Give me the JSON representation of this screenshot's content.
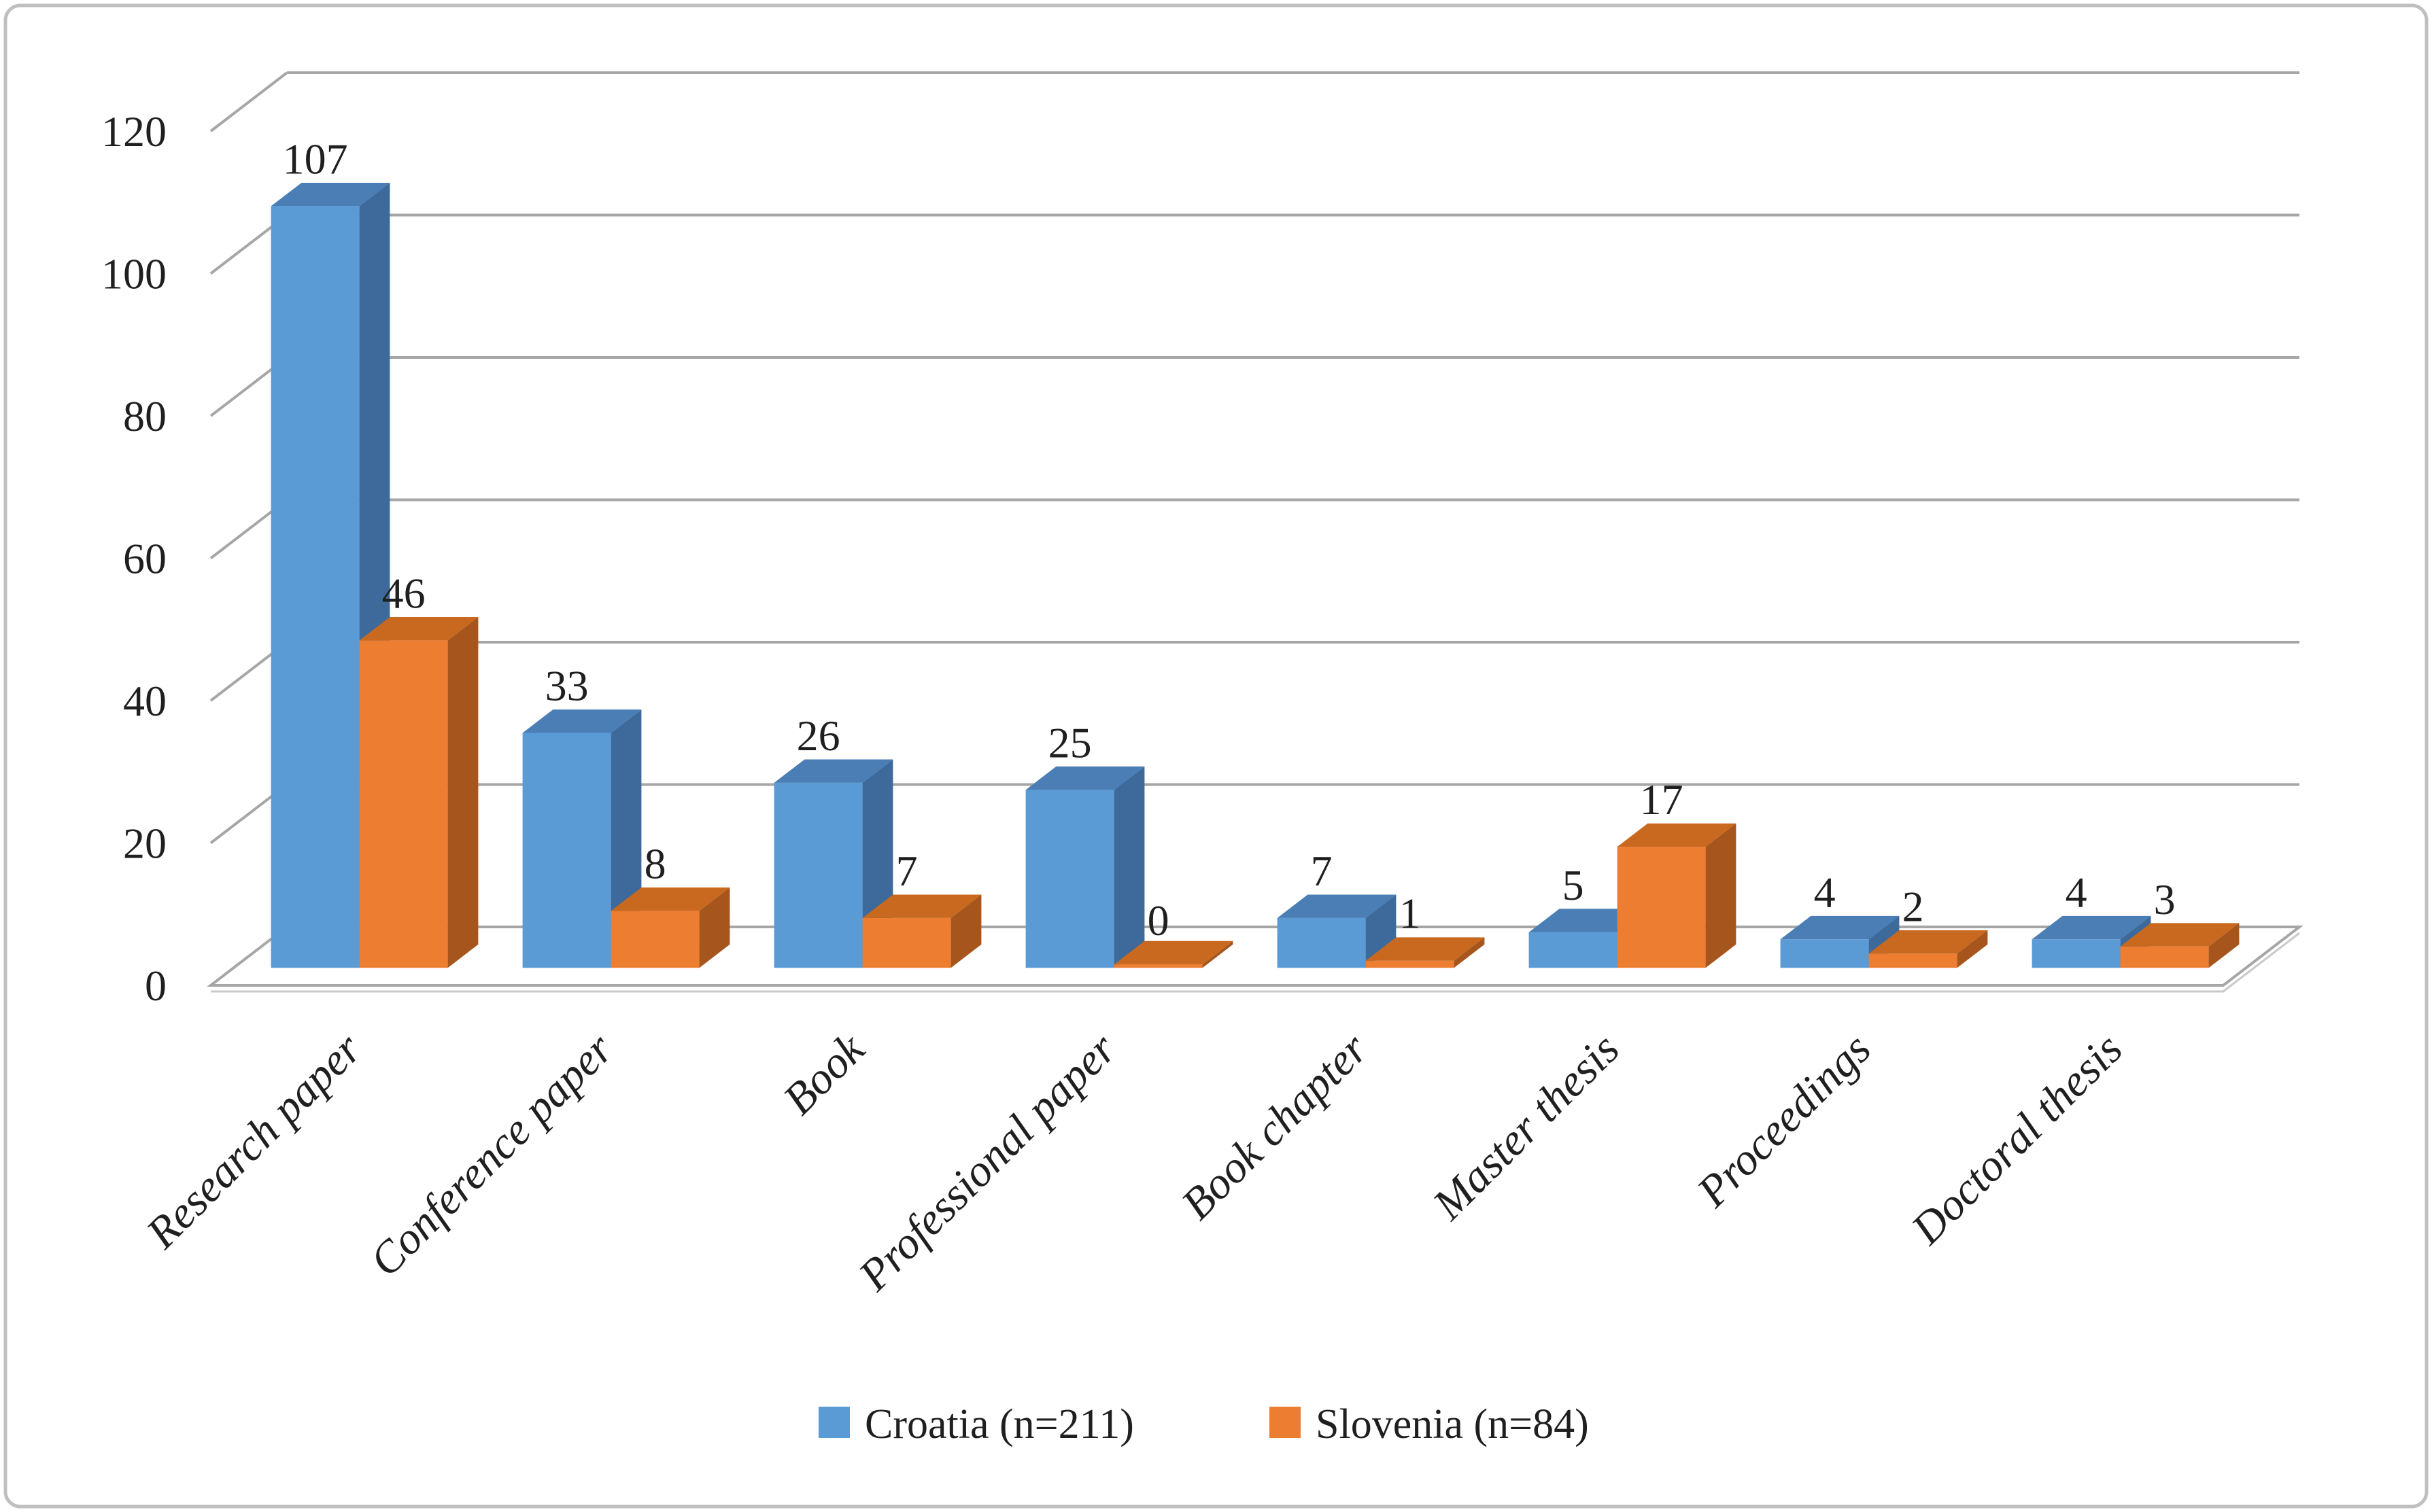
{
  "figure": {
    "background": "#FFFFFF",
    "border_color": "#BFBFBF"
  },
  "colors": {
    "gridline": "#A6A6A6",
    "floor_shadow": "#C9C9C9",
    "text": "#1F1F1F"
  },
  "chart_data": {
    "type": "bar",
    "style": "3d-clustered-column",
    "title": "",
    "xlabel": "",
    "ylabel": "",
    "categories": [
      "Research paper",
      "Conference paper",
      "Book",
      "Professional paper",
      "Book chapter",
      "Master thesis",
      "Proceedings",
      "Doctoral thesis"
    ],
    "series": [
      {
        "name": "Croatia (n=211)",
        "color": "#5B9BD5",
        "face_colors": {
          "front": "#5B9BD5",
          "top": "#4A7EB5",
          "side": "#3D6A9A"
        },
        "values": [
          107,
          33,
          26,
          25,
          7,
          5,
          4,
          4
        ]
      },
      {
        "name": "Slovenia (n=84)",
        "color": "#ED7D31",
        "face_colors": {
          "front": "#ED7D31",
          "top": "#C8691F",
          "side": "#A6561C"
        },
        "values": [
          46,
          8,
          7,
          0,
          1,
          17,
          2,
          3
        ]
      }
    ],
    "y_axis": {
      "min": 0,
      "max": 120,
      "ticks": [
        0,
        20,
        40,
        60,
        80,
        100,
        120
      ]
    },
    "data_labels_visible": true,
    "grid": true,
    "legend_position": "bottom"
  }
}
